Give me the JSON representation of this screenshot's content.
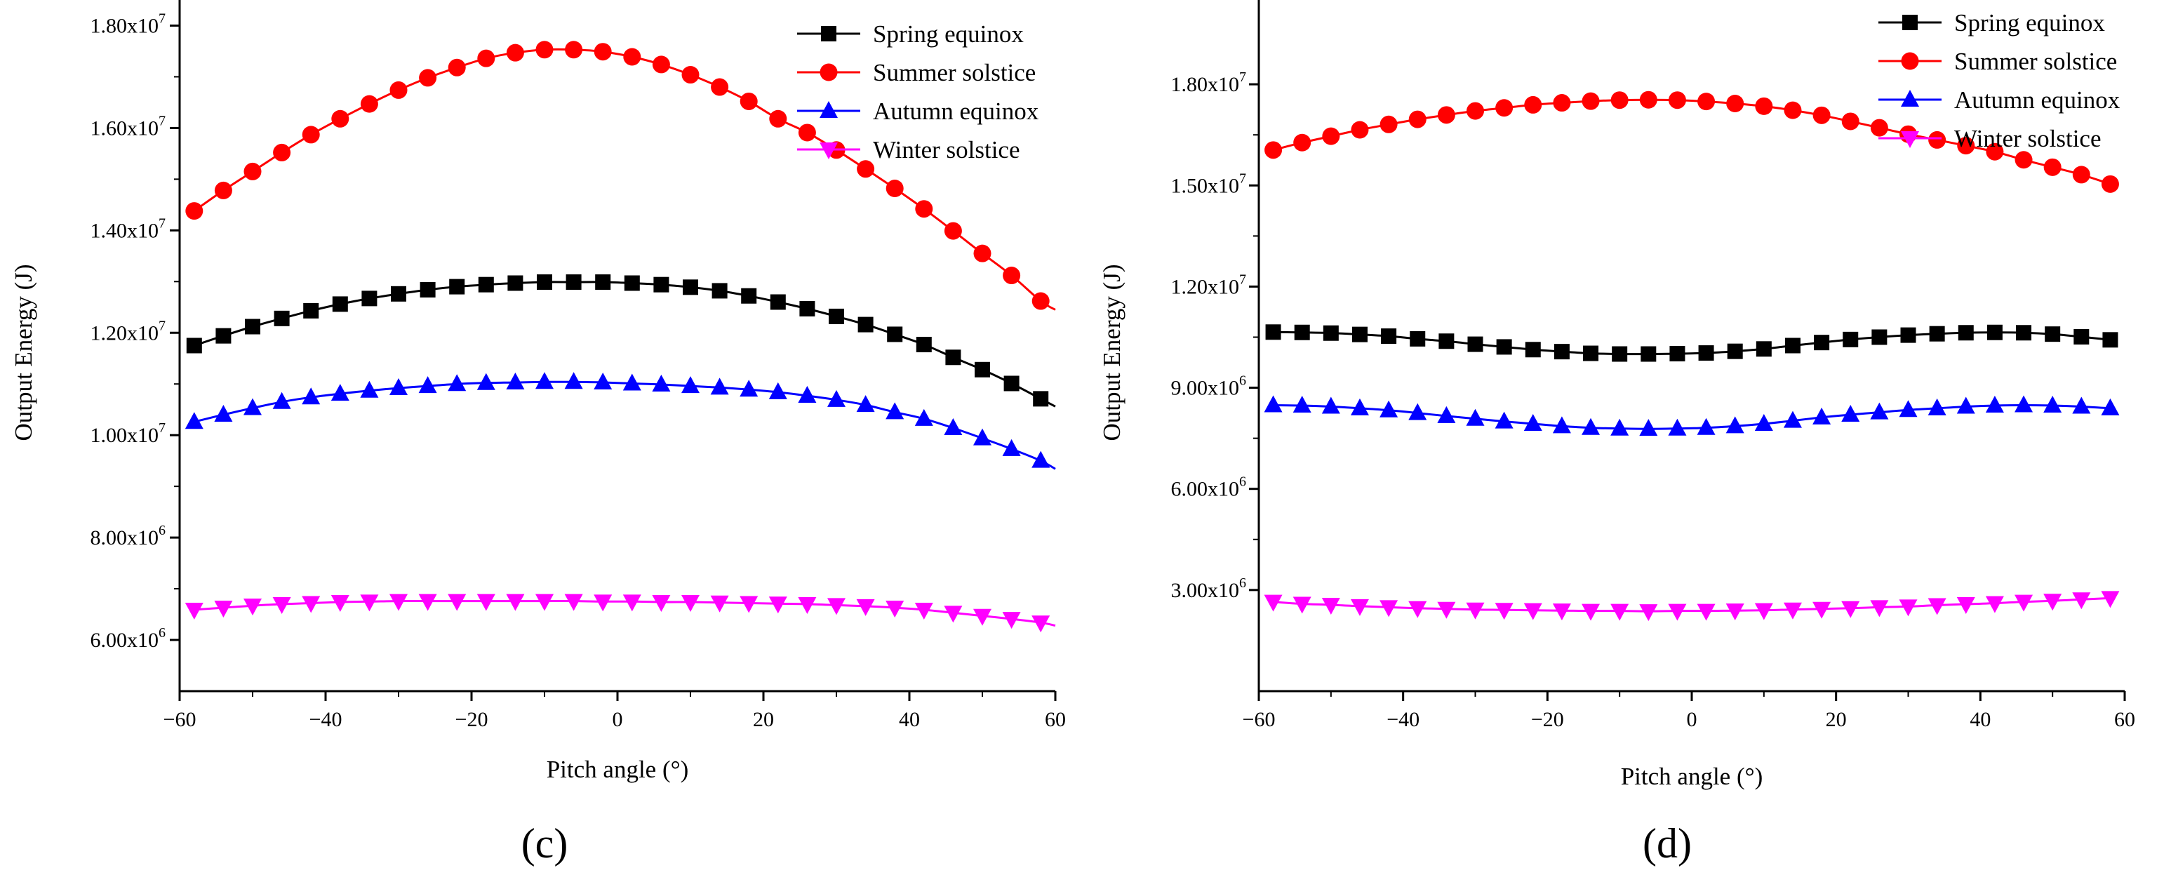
{
  "figure": {
    "panels": [
      "(c)",
      "(d)"
    ]
  },
  "colors": {
    "spring": "#000000",
    "summer": "#ff0000",
    "autumn": "#0000ff",
    "winter": "#ff00ff"
  },
  "chart_data": [
    {
      "type": "line",
      "panel_label": "(c)",
      "xlabel": "Pitch angle (°)",
      "ylabel": "Output Energy (J)",
      "xlim": [
        -60,
        60
      ],
      "ylim": [
        5000000,
        18500000
      ],
      "xticks": [
        -60,
        -40,
        -20,
        0,
        20,
        40,
        60
      ],
      "xtick_labels": [
        "−60",
        "−40",
        "−20",
        "0",
        "20",
        "40",
        "60"
      ],
      "yticks": [
        {
          "value": 6000000,
          "mantissa": "6.00x10",
          "exp": "6"
        },
        {
          "value": 8000000,
          "mantissa": "8.00x10",
          "exp": "6"
        },
        {
          "value": 10000000,
          "mantissa": "1.00x10",
          "exp": "7"
        },
        {
          "value": 12000000,
          "mantissa": "1.20x10",
          "exp": "7"
        },
        {
          "value": 14000000,
          "mantissa": "1.40x10",
          "exp": "7"
        },
        {
          "value": 16000000,
          "mantissa": "1.60x10",
          "exp": "7"
        },
        {
          "value": 18000000,
          "mantissa": "1.80x10",
          "exp": "7"
        }
      ],
      "legend_position": "top-right",
      "x": [
        -58,
        -54,
        -50,
        -46,
        -42,
        -38,
        -34,
        -30,
        -26,
        -22,
        -18,
        -14,
        -10,
        -6,
        -2,
        2,
        6,
        10,
        14,
        18,
        22,
        26,
        30,
        34,
        38,
        42,
        46,
        50,
        54,
        58
      ],
      "series": [
        {
          "key": "spring",
          "name": "Spring equinox",
          "marker": "square",
          "peak_x": -6,
          "peak_y": 12990000,
          "curve_a": 1310,
          "x_end": 60,
          "y_end": 10560000,
          "values": [
            11750000,
            11940000,
            12120000,
            12280000,
            12430000,
            12560000,
            12670000,
            12760000,
            12840000,
            12900000,
            12940000,
            12970000,
            12990000,
            12990000,
            12990000,
            12970000,
            12940000,
            12890000,
            12820000,
            12720000,
            12600000,
            12470000,
            12320000,
            12160000,
            11970000,
            11770000,
            11520000,
            11280000,
            11010000,
            10710000
          ]
        },
        {
          "key": "summer",
          "name": "Summer solstice",
          "marker": "circle",
          "peak_x": -8,
          "peak_y": 17520000,
          "curve_a": 1080,
          "x_end": 60,
          "y_end": 12450000,
          "values": [
            14380000,
            14780000,
            15150000,
            15520000,
            15870000,
            16180000,
            16470000,
            16740000,
            16980000,
            17180000,
            17360000,
            17470000,
            17530000,
            17530000,
            17490000,
            17390000,
            17240000,
            17040000,
            16800000,
            16520000,
            16180000,
            15910000,
            15570000,
            15200000,
            14820000,
            14420000,
            13990000,
            13550000,
            13120000,
            12620000
          ]
        },
        {
          "key": "autumn",
          "name": "Autumn equinox",
          "marker": "triangle-up",
          "peak_x": -8,
          "peak_y": 11040000,
          "curve_a": 370,
          "x_end": 60,
          "y_end": 9340000,
          "values": [
            10260000,
            10400000,
            10530000,
            10650000,
            10740000,
            10810000,
            10870000,
            10920000,
            10960000,
            11000000,
            11020000,
            11030000,
            11040000,
            11040000,
            11030000,
            11010000,
            10990000,
            10960000,
            10930000,
            10890000,
            10840000,
            10770000,
            10690000,
            10590000,
            10450000,
            10320000,
            10140000,
            9940000,
            9730000,
            9500000
          ]
        },
        {
          "key": "winter",
          "name": "Winter solstice",
          "marker": "triangle-down",
          "peak_x": -12,
          "peak_y": 6760000,
          "curve_a": 90,
          "x_end": 60,
          "y_end": 6280000,
          "values": [
            6590000,
            6630000,
            6670000,
            6700000,
            6720000,
            6740000,
            6750000,
            6760000,
            6760000,
            6760000,
            6760000,
            6760000,
            6760000,
            6760000,
            6750000,
            6750000,
            6740000,
            6740000,
            6730000,
            6720000,
            6710000,
            6700000,
            6680000,
            6660000,
            6630000,
            6590000,
            6530000,
            6470000,
            6410000,
            6340000
          ]
        }
      ]
    },
    {
      "type": "line",
      "panel_label": "(d)",
      "xlabel": "Pitch angle (°)",
      "ylabel": "Output Energy (J)",
      "xlim": [
        -60,
        60
      ],
      "ylim": [
        0,
        20500000
      ],
      "xticks": [
        -60,
        -40,
        -20,
        0,
        20,
        40,
        60
      ],
      "xtick_labels": [
        "−60",
        "−40",
        "−20",
        "0",
        "20",
        "40",
        "60"
      ],
      "yticks": [
        {
          "value": 3000000,
          "mantissa": "3.00x10",
          "exp": "6"
        },
        {
          "value": 6000000,
          "mantissa": "6.00x10",
          "exp": "6"
        },
        {
          "value": 9000000,
          "mantissa": "9.00x10",
          "exp": "6"
        },
        {
          "value": 12000000,
          "mantissa": "1.20x10",
          "exp": "7"
        },
        {
          "value": 15000000,
          "mantissa": "1.50x10",
          "exp": "7"
        },
        {
          "value": 18000000,
          "mantissa": "1.80x10",
          "exp": "7"
        }
      ],
      "legend_position": "top-right",
      "x": [
        -58,
        -54,
        -50,
        -46,
        -42,
        -38,
        -34,
        -30,
        -26,
        -22,
        -18,
        -14,
        -10,
        -6,
        -2,
        2,
        6,
        10,
        14,
        18,
        22,
        26,
        30,
        34,
        38,
        42,
        46,
        50,
        54,
        58
      ],
      "series": [
        {
          "key": "spring",
          "name": "Spring equinox",
          "marker": "square",
          "values": [
            10650000,
            10640000,
            10620000,
            10580000,
            10530000,
            10450000,
            10380000,
            10290000,
            10210000,
            10130000,
            10070000,
            10020000,
            10000000,
            10000000,
            10010000,
            10030000,
            10080000,
            10150000,
            10250000,
            10340000,
            10430000,
            10500000,
            10560000,
            10600000,
            10630000,
            10640000,
            10630000,
            10590000,
            10510000,
            10420000
          ]
        },
        {
          "key": "summer",
          "name": "Summer solstice",
          "marker": "circle",
          "values": [
            16050000,
            16270000,
            16460000,
            16650000,
            16810000,
            16960000,
            17090000,
            17210000,
            17300000,
            17390000,
            17450000,
            17500000,
            17530000,
            17540000,
            17530000,
            17490000,
            17430000,
            17350000,
            17230000,
            17080000,
            16900000,
            16710000,
            16520000,
            16350000,
            16180000,
            16000000,
            15760000,
            15540000,
            15320000,
            15040000
          ]
        },
        {
          "key": "autumn",
          "name": "Autumn equinox",
          "marker": "triangle-up",
          "values": [
            8480000,
            8470000,
            8440000,
            8390000,
            8330000,
            8250000,
            8160000,
            8080000,
            8000000,
            7930000,
            7860000,
            7810000,
            7790000,
            7780000,
            7790000,
            7810000,
            7860000,
            7930000,
            8020000,
            8120000,
            8200000,
            8270000,
            8340000,
            8390000,
            8440000,
            8470000,
            8480000,
            8470000,
            8440000,
            8390000
          ]
        },
        {
          "key": "winter",
          "name": "Winter solstice",
          "marker": "triangle-down",
          "values": [
            2650000,
            2590000,
            2560000,
            2520000,
            2490000,
            2460000,
            2440000,
            2420000,
            2410000,
            2400000,
            2390000,
            2380000,
            2380000,
            2370000,
            2380000,
            2380000,
            2390000,
            2400000,
            2420000,
            2440000,
            2460000,
            2490000,
            2510000,
            2550000,
            2580000,
            2610000,
            2650000,
            2680000,
            2720000,
            2760000
          ]
        }
      ]
    }
  ]
}
